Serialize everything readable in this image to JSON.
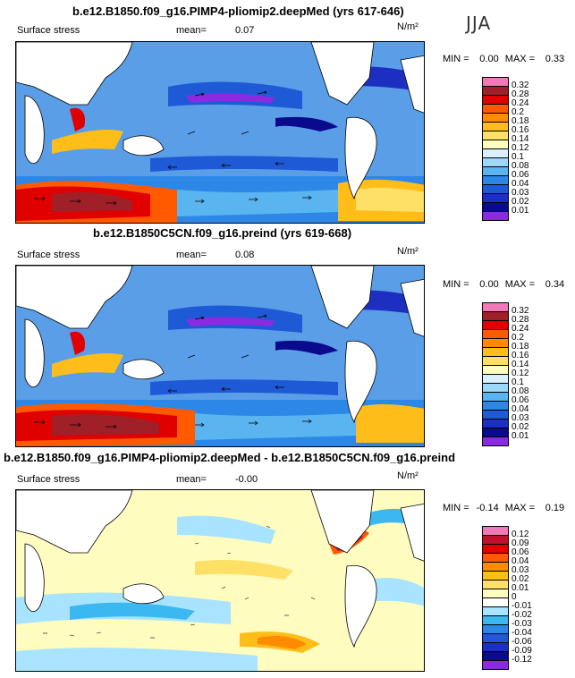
{
  "season": "JJA",
  "panels": [
    {
      "title": "b.e12.B1850.f09_g16.PIMP4-pliomip2.deepMed (yrs 617-646)",
      "variable": "Surface stress",
      "mean_label": "mean=",
      "mean_value": "0.07",
      "units": "N/m²",
      "min_label": "MIN =",
      "min_value": "0.00",
      "max_label": "MAX =",
      "max_value": "0.33",
      "colorbar_ticks": [
        "0.32",
        "0.28",
        "0.24",
        "0.2",
        "0.18",
        "0.16",
        "0.14",
        "0.12",
        "0.1",
        "0.08",
        "0.06",
        "0.04",
        "0.03",
        "0.02",
        "0.01"
      ],
      "colorbar_colors": [
        "#f07ab8",
        "#a0202a",
        "#e00000",
        "#ff5a00",
        "#ff8c00",
        "#ffbd1a",
        "#ffe066",
        "#fffcc0",
        "#d8f0ff",
        "#9ed8f8",
        "#59b4f0",
        "#2d87e6",
        "#1f5ad6",
        "#1d2fc0",
        "#0a0a8c",
        "#8a2be2"
      ]
    },
    {
      "title": "b.e12.B1850C5CN.f09_g16.preind (yrs 619-668)",
      "variable": "Surface stress",
      "mean_label": "mean=",
      "mean_value": "0.08",
      "units": "N/m²",
      "min_label": "MIN =",
      "min_value": "0.00",
      "max_label": "MAX =",
      "max_value": "0.34",
      "colorbar_ticks": [
        "0.32",
        "0.28",
        "0.24",
        "0.2",
        "0.18",
        "0.16",
        "0.14",
        "0.12",
        "0.1",
        "0.08",
        "0.06",
        "0.04",
        "0.03",
        "0.02",
        "0.01"
      ],
      "colorbar_colors": [
        "#f07ab8",
        "#a0202a",
        "#e00000",
        "#ff5a00",
        "#ff8c00",
        "#ffbd1a",
        "#ffe066",
        "#fffcc0",
        "#d8f0ff",
        "#9ed8f8",
        "#59b4f0",
        "#2d87e6",
        "#1f5ad6",
        "#1d2fc0",
        "#0a0a8c",
        "#8a2be2"
      ]
    },
    {
      "title": "b.e12.B1850.f09_g16.PIMP4-pliomip2.deepMed - b.e12.B1850C5CN.f09_g16.preind",
      "variable": "Surface stress",
      "mean_label": "mean=",
      "mean_value": "-0.00",
      "units": "N/m²",
      "min_label": "MIN =",
      "min_value": "-0.14",
      "max_label": "MAX =",
      "max_value": "0.19",
      "colorbar_ticks": [
        "0.12",
        "0.09",
        "0.06",
        "0.04",
        "0.03",
        "0.02",
        "0.01",
        "0",
        "-0.01",
        "-0.02",
        "-0.03",
        "-0.04",
        "-0.06",
        "-0.09",
        "-0.12"
      ],
      "colorbar_colors": [
        "#f07ab8",
        "#c0102a",
        "#e00000",
        "#ff5a00",
        "#ff8c00",
        "#ffbd1a",
        "#ffe066",
        "#fffcc0",
        "#ffffff",
        "#a8e4ff",
        "#3cb8f0",
        "#2d87e6",
        "#1f5ad6",
        "#1d2fc0",
        "#0a0a8c",
        "#8a2be2"
      ]
    }
  ]
}
